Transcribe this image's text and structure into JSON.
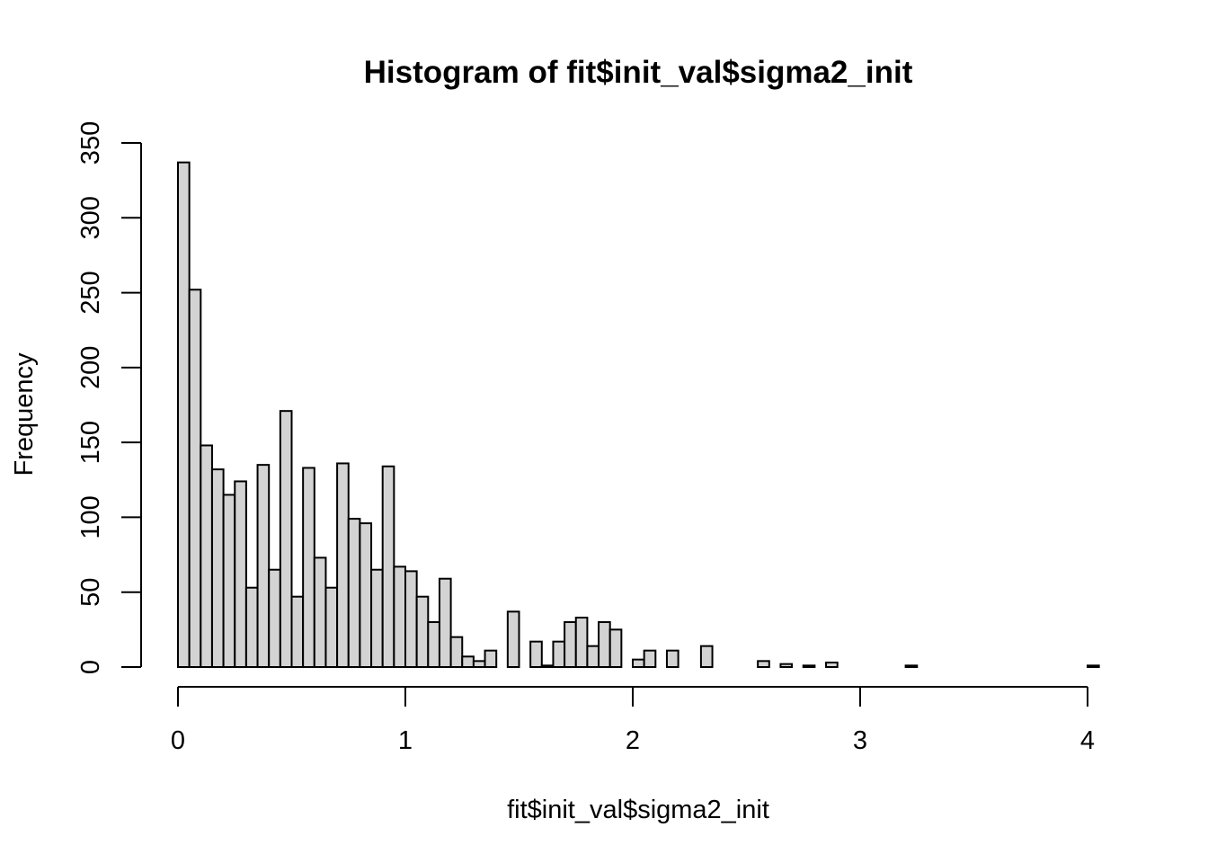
{
  "chart_data": {
    "type": "bar",
    "subtype": "histogram",
    "title": "Histogram of fit$init_val$sigma2_init",
    "xlabel": "fit$init_val$sigma2_init",
    "ylabel": "Frequency",
    "xlim": [
      0,
      4.05
    ],
    "ylim": [
      0,
      350
    ],
    "x_ticks": [
      0,
      1,
      2,
      3,
      4
    ],
    "y_ticks": [
      0,
      50,
      100,
      150,
      200,
      250,
      300,
      350
    ],
    "bin_width": 0.05,
    "bin_start": 0,
    "values": [
      337,
      252,
      148,
      132,
      115,
      124,
      53,
      135,
      65,
      171,
      47,
      133,
      73,
      53,
      136,
      99,
      96,
      65,
      134,
      67,
      64,
      47,
      30,
      59,
      20,
      7,
      4,
      11,
      0,
      37,
      0,
      17,
      1,
      17,
      30,
      33,
      14,
      30,
      25,
      0,
      5,
      11,
      0,
      11,
      0,
      0,
      14,
      0,
      0,
      0,
      0,
      4,
      0,
      2,
      0,
      1,
      0,
      3,
      0,
      0,
      0,
      0,
      0,
      0,
      1,
      0,
      0,
      0,
      0,
      0,
      0,
      0,
      0,
      0,
      0,
      0,
      0,
      0,
      0,
      0,
      1
    ],
    "bar_fill": "#d3d3d3",
    "bar_stroke": "#000000",
    "grid": false,
    "legend": "none"
  }
}
